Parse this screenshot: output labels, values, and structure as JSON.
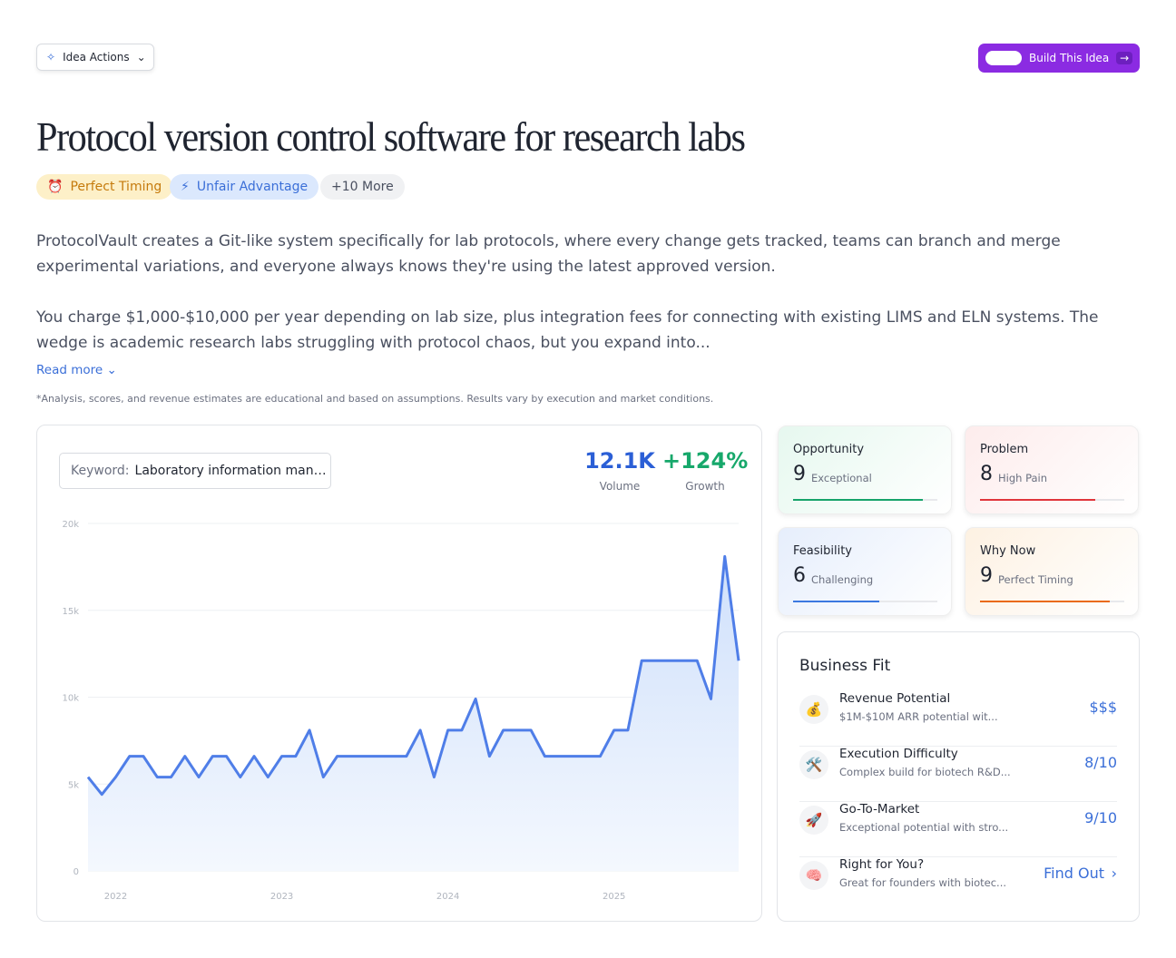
{
  "header": {
    "actions_button": "Idea Actions",
    "build_button": "Build This Idea"
  },
  "title": "Protocol version control software for research labs",
  "tags": [
    "Perfect Timing",
    "Unfair Advantage",
    "+10 More"
  ],
  "description": [
    "ProtocolVault creates a Git-like system specifically for lab protocols, where every change gets tracked, teams can branch and merge experimental variations, and everyone always knows they're using the latest approved version.",
    "You charge $1,000-$10,000 per year depending on lab size, plus integration fees for connecting with existing LIMS and ELN systems. The wedge is academic research labs struggling with protocol chaos, but you expand into..."
  ],
  "read_more": "Read more",
  "disclaimer": "*Analysis, scores, and revenue estimates are educational and based on assumptions. Results vary by execution and market conditions.",
  "keyword": {
    "label": "Keyword:",
    "value": "Laboratory information man…"
  },
  "stats": [
    {
      "value": "12.1K",
      "label": "Volume"
    },
    {
      "value": "+124%",
      "label": "Growth"
    }
  ],
  "chart_data": {
    "type": "line",
    "categories": [
      null,
      null,
      "2022",
      null,
      null,
      null,
      null,
      null,
      null,
      null,
      null,
      null,
      null,
      null,
      "2023",
      null,
      null,
      null,
      null,
      null,
      null,
      null,
      null,
      null,
      null,
      null,
      "2024",
      null,
      null,
      null,
      null,
      null,
      null,
      null,
      null,
      null,
      null,
      null,
      "2025",
      null,
      null,
      null,
      null,
      null,
      null,
      null,
      null,
      null
    ],
    "series": [
      {
        "name": "Volume",
        "color": "#4f7ee8",
        "values": [
          5400,
          4400,
          5400,
          6600,
          6600,
          5400,
          5400,
          6600,
          5400,
          6600,
          6600,
          5400,
          6600,
          5400,
          6600,
          6600,
          8100,
          5400,
          6600,
          6600,
          6600,
          6600,
          6600,
          6600,
          8100,
          5400,
          8100,
          8100,
          9900,
          6600,
          8100,
          8100,
          8100,
          6600,
          6600,
          6600,
          6600,
          6600,
          8100,
          8100,
          12100,
          12100,
          12100,
          12100,
          12100,
          9900,
          18100,
          12100
        ]
      }
    ],
    "ylim": [
      0,
      20000
    ],
    "yticks": [
      0,
      {
        "value": 5000,
        "label": "5k"
      },
      {
        "value": 10000,
        "label": "10k"
      },
      {
        "value": 15000,
        "label": "15k"
      },
      {
        "value": 20000,
        "label": "20k"
      }
    ],
    "grid": true
  },
  "scores": [
    {
      "name": "Opportunity",
      "score": 9,
      "label": "Exceptional",
      "color": "#16a36a"
    },
    {
      "name": "Problem",
      "score": 8,
      "label": "High Pain",
      "color": "#e0353b"
    },
    {
      "name": "Feasibility",
      "score": 6,
      "label": "Challenging",
      "color": "#3b78e0"
    },
    {
      "name": "Why Now",
      "score": 9,
      "label": "Perfect Timing",
      "color": "#ea6a12"
    }
  ],
  "business_fit": {
    "title": "Business Fit",
    "items": [
      {
        "name": "Revenue Potential",
        "desc": "$1M-$10M ARR potential wit...",
        "value": "$$$"
      },
      {
        "name": "Execution Difficulty",
        "desc": "Complex build for biotech R&D...",
        "value": "8/10"
      },
      {
        "name": "Go-To-Market",
        "desc": "Exceptional potential with stro...",
        "value": "9/10"
      },
      {
        "name": "Right for You?",
        "desc": "Great for founders with biotec...",
        "value": "Find Out"
      }
    ]
  }
}
